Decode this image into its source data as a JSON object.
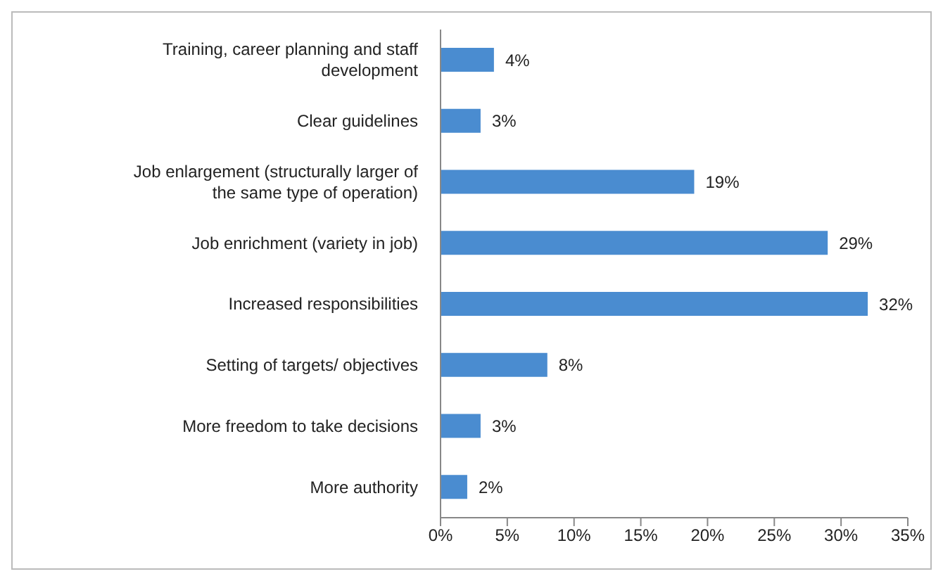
{
  "chart_data": {
    "type": "bar",
    "orientation": "horizontal",
    "categories": [
      "Training, career planning and staff development",
      "Clear guidelines",
      "Job enlargement (structurally larger of the same type of operation)",
      "Job enrichment (variety in job)",
      "Increased responsibilities",
      "Setting of targets/ objectives",
      "More freedom to take decisions",
      "More authority"
    ],
    "values": [
      4,
      3,
      19,
      29,
      32,
      8,
      3,
      2
    ],
    "value_labels": [
      "4%",
      "3%",
      "19%",
      "29%",
      "32%",
      "8%",
      "3%",
      "2%"
    ],
    "color": "#4a8cd0",
    "xlim": [
      0,
      35
    ],
    "xticks": [
      {
        "value": 0,
        "label": "0%"
      },
      {
        "value": 5,
        "label": "5%"
      },
      {
        "value": 10,
        "label": "10%"
      },
      {
        "value": 15,
        "label": "15%"
      },
      {
        "value": 20,
        "label": "20%"
      },
      {
        "value": 25,
        "label": "25%"
      },
      {
        "value": 30,
        "label": "30%"
      },
      {
        "value": 35,
        "label": "35%"
      }
    ],
    "grid": false
  }
}
